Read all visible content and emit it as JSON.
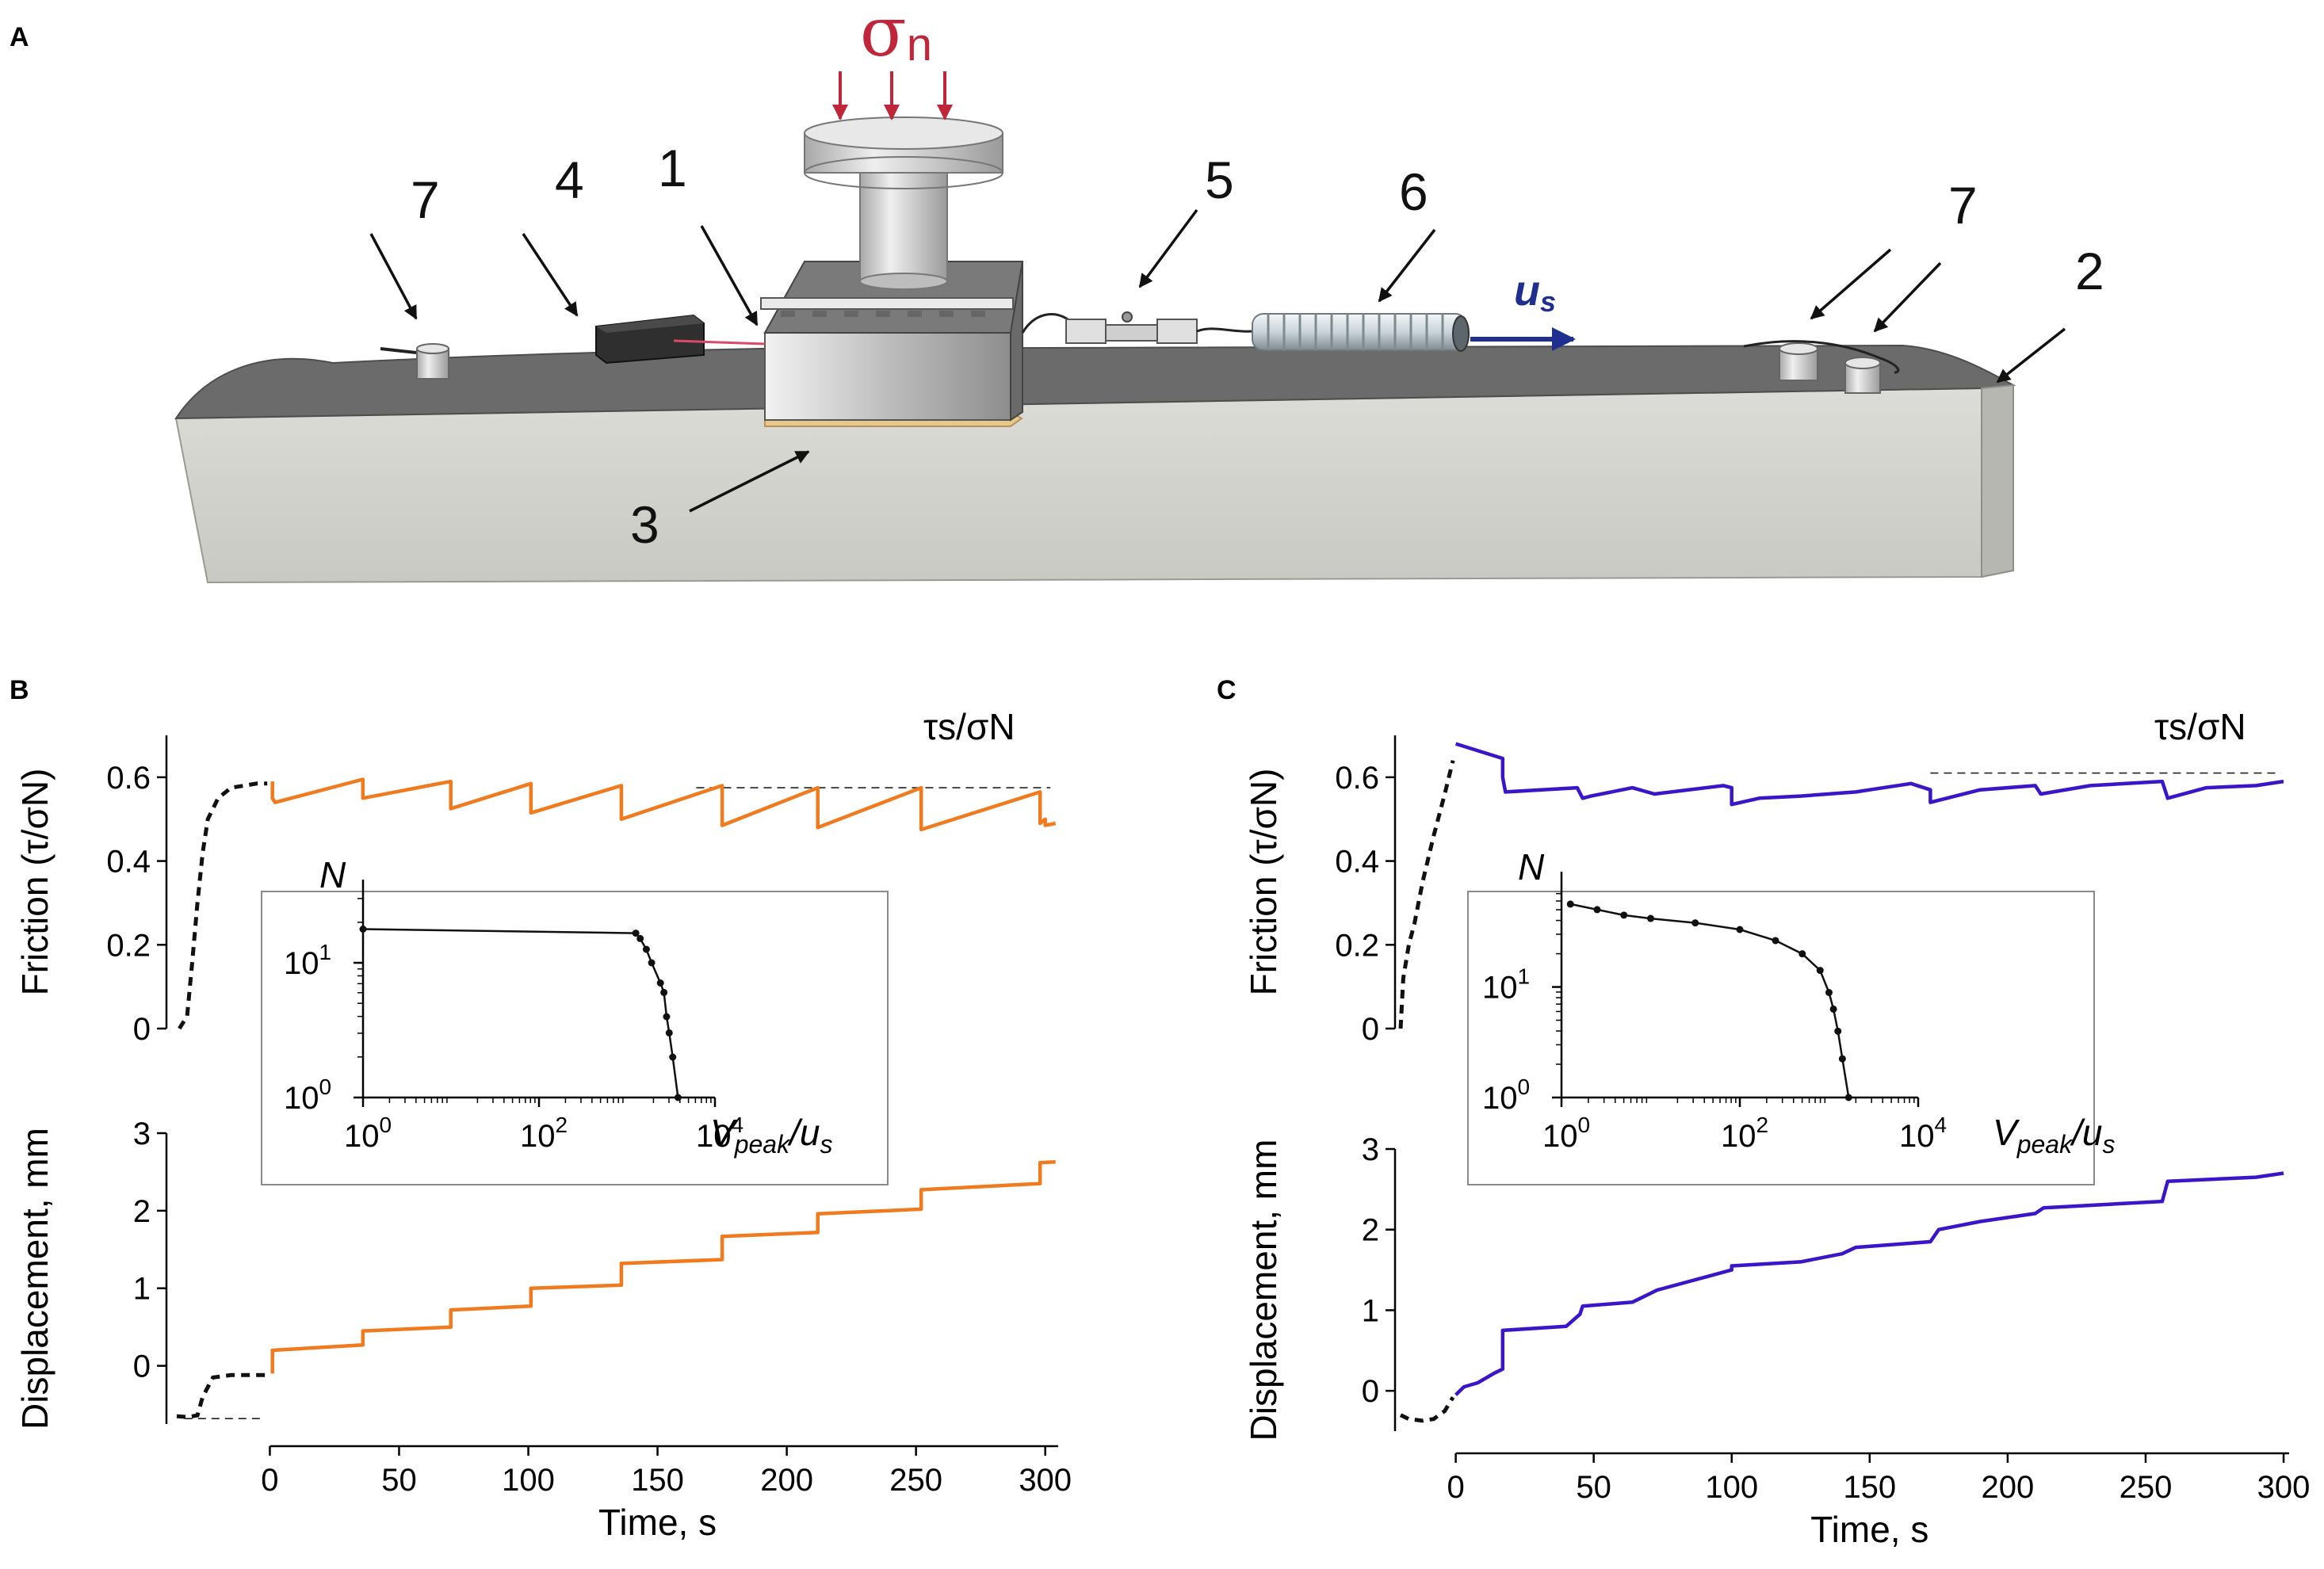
{
  "panel_a": {
    "label": "A",
    "sigma_label": "σ",
    "sigma_subscript": "n",
    "us_label": "u",
    "us_subscript": "s",
    "component_labels": [
      "7",
      "4",
      "1",
      "5",
      "6",
      "7",
      "2",
      "3"
    ]
  },
  "colors": {
    "orange": "#f07b1f",
    "blue": "#3b15c8",
    "sigma_red": "#c0263a",
    "us_blue": "#1f2f8f"
  },
  "chart_data": [
    {
      "id": "B-friction",
      "panel": "B",
      "type": "line",
      "ylabel": "Friction (τ/σN)",
      "annotation": "τs/σN",
      "ylim": [
        0,
        0.7
      ],
      "xlim": [
        -40,
        305
      ],
      "yticks": [
        "0",
        "0.2",
        "0.4",
        "0.6"
      ],
      "ytick_values": [
        0,
        0.2,
        0.4,
        0.6
      ],
      "dashed_level": 0.575,
      "loading_series": {
        "x": [
          -35,
          -32,
          -30,
          -28,
          -26,
          -24,
          -20,
          -15,
          -5,
          -1
        ],
        "y": [
          0.0,
          0.03,
          0.16,
          0.3,
          0.42,
          0.5,
          0.55,
          0.575,
          0.585,
          0.585
        ]
      },
      "series": [
        {
          "name": "orange-friction",
          "color": "#f07b1f",
          "x": [
            1,
            1,
            2,
            36,
            36,
            70,
            70,
            101,
            101,
            136,
            136,
            175,
            175,
            212,
            212,
            252,
            252,
            298,
            298,
            300,
            300,
            304
          ],
          "y": [
            0.59,
            0.55,
            0.54,
            0.595,
            0.55,
            0.59,
            0.525,
            0.585,
            0.515,
            0.58,
            0.5,
            0.58,
            0.485,
            0.575,
            0.48,
            0.575,
            0.475,
            0.565,
            0.49,
            0.5,
            0.485,
            0.49
          ]
        }
      ]
    },
    {
      "id": "B-displacement",
      "panel": "B",
      "type": "line",
      "ylabel": "Displacement, mm",
      "xlabel": "Time, s",
      "ylim": [
        -0.75,
        3
      ],
      "xlim": [
        -40,
        305
      ],
      "yticks": [
        "0",
        "1",
        "2",
        "3"
      ],
      "ytick_values": [
        0,
        1,
        2,
        3
      ],
      "xticks": [
        "0",
        "50",
        "100",
        "150",
        "200",
        "250",
        "300"
      ],
      "xtick_values": [
        0,
        50,
        100,
        150,
        200,
        250,
        300
      ],
      "dashed_level": -0.68,
      "loading_series": {
        "x": [
          -36,
          -32,
          -28,
          -26,
          -22,
          -15,
          -5,
          -1
        ],
        "y": [
          -0.65,
          -0.66,
          -0.64,
          -0.4,
          -0.15,
          -0.12,
          -0.12,
          -0.12
        ]
      },
      "series": [
        {
          "name": "orange-displacement",
          "color": "#f07b1f",
          "x": [
            1,
            1,
            36,
            36,
            70,
            70,
            101,
            101,
            136,
            136,
            175,
            175,
            212,
            212,
            252,
            252,
            298,
            298,
            304
          ],
          "y": [
            -0.1,
            0.2,
            0.27,
            0.45,
            0.5,
            0.72,
            0.77,
            1.0,
            1.04,
            1.32,
            1.37,
            1.67,
            1.72,
            1.96,
            2.02,
            2.27,
            2.35,
            2.62,
            2.63
          ]
        }
      ]
    },
    {
      "id": "B-inset",
      "panel": "B",
      "type": "scatter",
      "ylabel": "N",
      "xlabel_main": "V",
      "xlabel_sub": "peak",
      "xlabel_tail": "/u",
      "xlabel_tail_sub": "s",
      "xtick_labels": [
        {
          "base": "10",
          "exp": "0"
        },
        {
          "base": "10",
          "exp": "2"
        },
        {
          "base": "10",
          "exp": "4"
        }
      ],
      "ytick_labels": [
        {
          "base": "10",
          "exp": "1"
        },
        {
          "base": "10",
          "exp": "0"
        }
      ],
      "xlim_log10": [
        0,
        4
      ],
      "ylim_log10": [
        0,
        1.5
      ],
      "points_log10": [
        [
          0,
          1.25
        ],
        [
          3.1,
          1.22
        ],
        [
          3.15,
          1.18
        ],
        [
          3.22,
          1.1
        ],
        [
          3.28,
          1.0
        ],
        [
          3.38,
          0.85
        ],
        [
          3.42,
          0.78
        ],
        [
          3.45,
          0.6
        ],
        [
          3.48,
          0.48
        ],
        [
          3.52,
          0.3
        ],
        [
          3.58,
          0.0
        ]
      ]
    },
    {
      "id": "C-friction",
      "panel": "C",
      "type": "line",
      "ylabel": "Friction (τ/σN)",
      "annotation": "τs/σN",
      "ylim": [
        0,
        0.7
      ],
      "xlim": [
        -22,
        302
      ],
      "yticks": [
        "0",
        "0.2",
        "0.4",
        "0.6"
      ],
      "ytick_values": [
        0,
        0.2,
        0.4,
        0.6
      ],
      "dashed_level": 0.61,
      "loading_series": {
        "x": [
          -20,
          -19,
          -17,
          -15,
          -12,
          -8,
          -4,
          -1
        ],
        "y": [
          0.0,
          0.12,
          0.2,
          0.25,
          0.35,
          0.46,
          0.56,
          0.64
        ]
      },
      "series": [
        {
          "name": "blue-friction",
          "color": "#3b15c8",
          "x": [
            0,
            17,
            17,
            18,
            44,
            46,
            49,
            64,
            72,
            97,
            100,
            100,
            110,
            125,
            145,
            150,
            165,
            172,
            172,
            190,
            210,
            212,
            230,
            256,
            258,
            272,
            290,
            300
          ],
          "y": [
            0.68,
            0.645,
            0.6,
            0.565,
            0.575,
            0.55,
            0.555,
            0.575,
            0.56,
            0.58,
            0.575,
            0.535,
            0.55,
            0.555,
            0.565,
            0.57,
            0.585,
            0.57,
            0.54,
            0.57,
            0.58,
            0.56,
            0.58,
            0.59,
            0.55,
            0.575,
            0.58,
            0.59
          ]
        }
      ]
    },
    {
      "id": "C-displacement",
      "panel": "C",
      "type": "line",
      "ylabel": "Displacement, mm",
      "xlabel": "Time, s",
      "ylim": [
        -0.5,
        3
      ],
      "xlim": [
        -22,
        302
      ],
      "yticks": [
        "0",
        "1",
        "2",
        "3"
      ],
      "ytick_values": [
        0,
        1,
        2,
        3
      ],
      "xticks": [
        "0",
        "50",
        "100",
        "150",
        "200",
        "250",
        "300"
      ],
      "xtick_values": [
        0,
        50,
        100,
        150,
        200,
        250,
        300
      ],
      "loading_series": {
        "x": [
          -20,
          -17,
          -12,
          -8,
          -4,
          -1
        ],
        "y": [
          -0.3,
          -0.35,
          -0.37,
          -0.35,
          -0.25,
          -0.08
        ]
      },
      "series": [
        {
          "name": "blue-displacement",
          "color": "#3b15c8",
          "x": [
            0,
            3,
            8,
            14,
            17,
            17,
            40,
            45,
            46,
            64,
            70,
            73,
            100,
            100,
            125,
            140,
            145,
            172,
            175,
            190,
            210,
            213,
            256,
            258,
            290,
            300
          ],
          "y": [
            -0.05,
            0.05,
            0.1,
            0.22,
            0.27,
            0.75,
            0.8,
            0.95,
            1.05,
            1.1,
            1.2,
            1.25,
            1.5,
            1.55,
            1.6,
            1.7,
            1.78,
            1.85,
            2.0,
            2.1,
            2.2,
            2.27,
            2.35,
            2.6,
            2.65,
            2.7
          ]
        }
      ]
    },
    {
      "id": "C-inset",
      "panel": "C",
      "type": "scatter",
      "ylabel": "N",
      "xlabel_main": "V",
      "xlabel_sub": "peak",
      "xlabel_tail": "/u",
      "xlabel_tail_sub": "s",
      "xtick_labels": [
        {
          "base": "10",
          "exp": "0"
        },
        {
          "base": "10",
          "exp": "2"
        },
        {
          "base": "10",
          "exp": "4"
        }
      ],
      "ytick_labels": [
        {
          "base": "10",
          "exp": "1"
        },
        {
          "base": "10",
          "exp": "0"
        }
      ],
      "xlim_log10": [
        0,
        4
      ],
      "ylim_log10": [
        0,
        1.9
      ],
      "points_log10": [
        [
          0.1,
          1.75
        ],
        [
          0.4,
          1.7
        ],
        [
          0.7,
          1.65
        ],
        [
          1.0,
          1.62
        ],
        [
          1.5,
          1.58
        ],
        [
          2.0,
          1.52
        ],
        [
          2.4,
          1.42
        ],
        [
          2.7,
          1.3
        ],
        [
          2.9,
          1.15
        ],
        [
          3.0,
          0.95
        ],
        [
          3.05,
          0.8
        ],
        [
          3.1,
          0.6
        ],
        [
          3.15,
          0.35
        ],
        [
          3.22,
          0.0
        ]
      ]
    }
  ]
}
